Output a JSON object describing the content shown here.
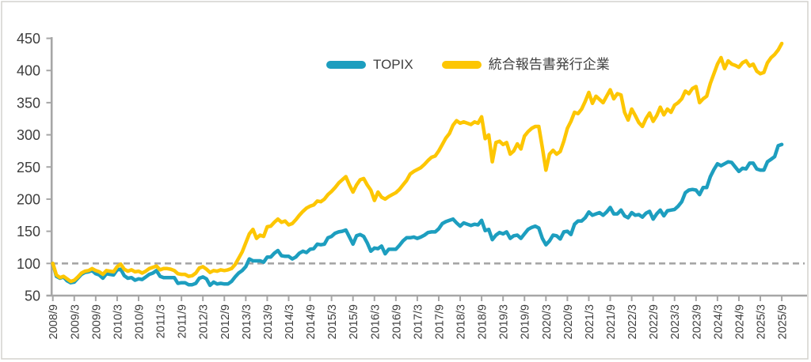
{
  "chart_data": {
    "type": "line",
    "title": "",
    "x_frequency": "monthly",
    "x_range": [
      "2008/9",
      "2025/9"
    ],
    "x_tick_labels": [
      "2008/9",
      "2009/3",
      "2009/9",
      "2010/3",
      "2010/9",
      "2011/3",
      "2011/9",
      "2012/3",
      "2012/9",
      "2013/3",
      "2013/9",
      "2014/3",
      "2014/9",
      "2015/3",
      "2015/9",
      "2016/3",
      "2016/9",
      "2017/3",
      "2017/9",
      "2018/3",
      "2018/9",
      "2019/3",
      "2019/9",
      "2020/3",
      "2020/9",
      "2021/3",
      "2021/9",
      "2022/3",
      "2022/9",
      "2023/3",
      "2023/9",
      "2024/3",
      "2024/9",
      "2025/3",
      "2025/9"
    ],
    "x_tick_interval_months": 6,
    "y_ticks": [
      450,
      400,
      350,
      300,
      250,
      200,
      150,
      100,
      50
    ],
    "ylim": [
      50,
      450
    ],
    "baseline": {
      "value": 100,
      "style": "dashed",
      "color": "#a6a6a6"
    },
    "grid": "off",
    "legend_position": "top-center",
    "series": [
      {
        "name": "TOPIX",
        "color": "#1d9ebf",
        "values": [
          100,
          80,
          77,
          79,
          73,
          70,
          71,
          77,
          83,
          86,
          87,
          89,
          84,
          82,
          77,
          84,
          83,
          82,
          90,
          91,
          81,
          77,
          78,
          74,
          76,
          75,
          79,
          83,
          85,
          89,
          80,
          78,
          78,
          78,
          78,
          69,
          70,
          70,
          67,
          67,
          69,
          77,
          79,
          76,
          66,
          71,
          68,
          69,
          68,
          68,
          72,
          79,
          85,
          89,
          95,
          107,
          104,
          104,
          104,
          102,
          110,
          110,
          116,
          120,
          112,
          111,
          111,
          107,
          110,
          116,
          119,
          117,
          122,
          123,
          130,
          129,
          130,
          140,
          142,
          147,
          149,
          150,
          152,
          141,
          130,
          143,
          145,
          142,
          132,
          119,
          124,
          123,
          127,
          115,
          122,
          122,
          122,
          128,
          135,
          140,
          140,
          141,
          139,
          141,
          144,
          148,
          149,
          149,
          154,
          162,
          165,
          167,
          169,
          163,
          158,
          163,
          161,
          159,
          161,
          160,
          167,
          151,
          153,
          137,
          144,
          148,
          146,
          149,
          139,
          143,
          144,
          139,
          146,
          153,
          156,
          158,
          155,
          139,
          129,
          135,
          144,
          143,
          138,
          149,
          150,
          145,
          161,
          166,
          166,
          171,
          180,
          175,
          177,
          179,
          175,
          180,
          187,
          177,
          177,
          183,
          174,
          171,
          179,
          175,
          176,
          172,
          178,
          181,
          169,
          177,
          183,
          174,
          182,
          183,
          184,
          189,
          196,
          210,
          214,
          215,
          214,
          207,
          218,
          218,
          235,
          246,
          255,
          252,
          255,
          258,
          257,
          250,
          243,
          248,
          247,
          256,
          256,
          247,
          245,
          245,
          258,
          262,
          266,
          283,
          285
        ]
      },
      {
        "name": "統合報告書発行企業",
        "color": "#fdc602",
        "values": [
          100,
          82,
          78,
          80,
          76,
          72,
          74,
          79,
          85,
          88,
          89,
          92,
          89,
          87,
          83,
          89,
          88,
          87,
          95,
          99,
          91,
          88,
          90,
          87,
          88,
          85,
          88,
          92,
          94,
          96,
          90,
          92,
          92,
          91,
          89,
          84,
          83,
          83,
          80,
          81,
          85,
          93,
          95,
          91,
          86,
          89,
          88,
          90,
          89,
          90,
          92,
          98,
          108,
          118,
          132,
          146,
          153,
          139,
          144,
          142,
          157,
          158,
          164,
          169,
          164,
          166,
          160,
          162,
          168,
          175,
          181,
          186,
          189,
          191,
          197,
          196,
          200,
          207,
          212,
          218,
          225,
          230,
          235,
          222,
          211,
          222,
          230,
          232,
          222,
          214,
          198,
          211,
          203,
          200,
          204,
          207,
          210,
          215,
          222,
          229,
          239,
          243,
          246,
          249,
          254,
          260,
          265,
          267,
          275,
          285,
          295,
          302,
          315,
          322,
          318,
          320,
          318,
          316,
          320,
          318,
          328,
          294,
          300,
          258,
          288,
          290,
          285,
          288,
          270,
          275,
          286,
          278,
          298,
          305,
          310,
          313,
          313,
          280,
          245,
          270,
          276,
          270,
          274,
          290,
          310,
          321,
          335,
          333,
          340,
          352,
          366,
          349,
          360,
          355,
          350,
          360,
          370,
          356,
          364,
          362,
          335,
          323,
          340,
          330,
          319,
          313,
          325,
          334,
          321,
          330,
          343,
          331,
          340,
          335,
          346,
          350,
          356,
          368,
          364,
          372,
          375,
          350,
          356,
          360,
          380,
          395,
          410,
          420,
          403,
          415,
          410,
          408,
          405,
          412,
          415,
          407,
          410,
          399,
          395,
          397,
          412,
          420,
          425,
          432,
          442
        ]
      }
    ]
  },
  "colors": {
    "axis": "#a6a6a6",
    "frame": "#d4d2cd",
    "tick_label": "#3d3d3d",
    "legend_label": "#404040",
    "background": "#ffffff"
  }
}
